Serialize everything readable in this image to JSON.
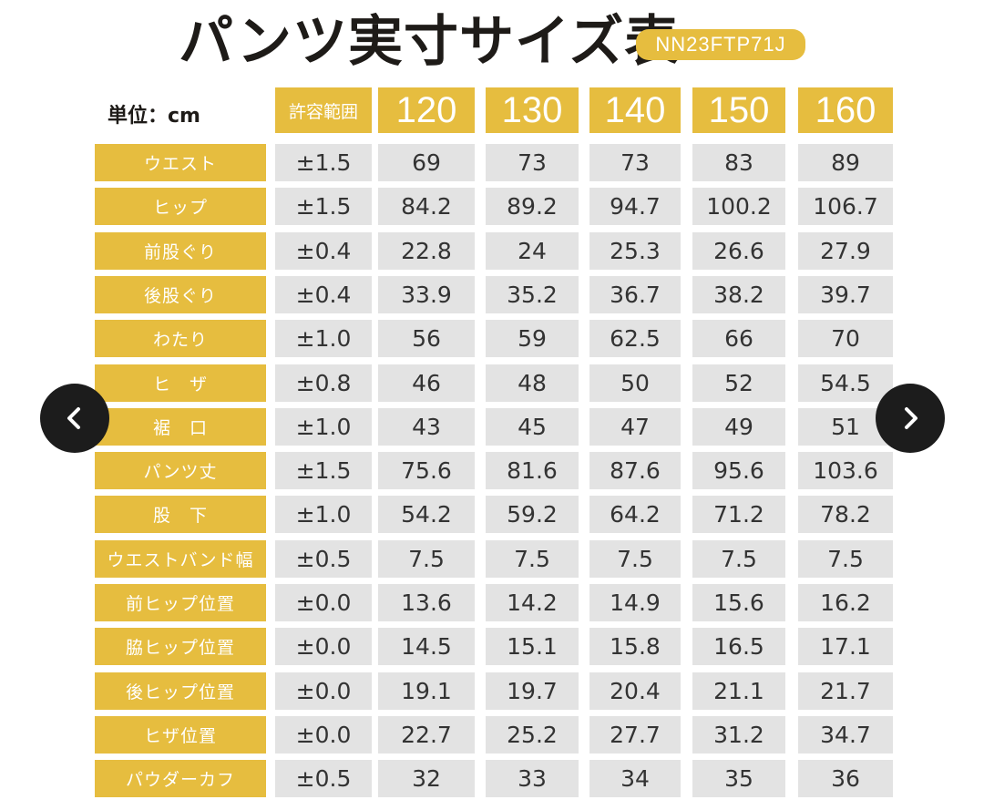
{
  "header": {
    "title": "パンツ実寸サイズ表",
    "product_code": "NN23FTP71J",
    "unit_label": "単位：cm"
  },
  "table": {
    "tolerance_header": "許容範囲",
    "sizes": [
      "120",
      "130",
      "140",
      "150",
      "160"
    ],
    "rows": [
      {
        "label": "ウエスト",
        "tolerance": "±1.5",
        "values": [
          "69",
          "73",
          "73",
          "83",
          "89"
        ]
      },
      {
        "label": "ヒップ",
        "tolerance": "±1.5",
        "values": [
          "84.2",
          "89.2",
          "94.7",
          "100.2",
          "106.7"
        ]
      },
      {
        "label": "前股ぐり",
        "tolerance": "±0.4",
        "values": [
          "22.8",
          "24",
          "25.3",
          "26.6",
          "27.9"
        ]
      },
      {
        "label": "後股ぐり",
        "tolerance": "±0.4",
        "values": [
          "33.9",
          "35.2",
          "36.7",
          "38.2",
          "39.7"
        ]
      },
      {
        "label": "わたり",
        "tolerance": "±1.0",
        "values": [
          "56",
          "59",
          "62.5",
          "66",
          "70"
        ]
      },
      {
        "label": "ヒ　ザ",
        "tolerance": "±0.8",
        "values": [
          "46",
          "48",
          "50",
          "52",
          "54.5"
        ]
      },
      {
        "label": "裾　口",
        "tolerance": "±1.0",
        "values": [
          "43",
          "45",
          "47",
          "49",
          "51"
        ]
      },
      {
        "label": "パンツ丈",
        "tolerance": "±1.5",
        "values": [
          "75.6",
          "81.6",
          "87.6",
          "95.6",
          "103.6"
        ]
      },
      {
        "label": "股　下",
        "tolerance": "±1.0",
        "values": [
          "54.2",
          "59.2",
          "64.2",
          "71.2",
          "78.2"
        ]
      },
      {
        "label": "ウエストバンド幅",
        "tolerance": "±0.5",
        "values": [
          "7.5",
          "7.5",
          "7.5",
          "7.5",
          "7.5"
        ]
      },
      {
        "label": "前ヒップ位置",
        "tolerance": "±0.0",
        "values": [
          "13.6",
          "14.2",
          "14.9",
          "15.6",
          "16.2"
        ]
      },
      {
        "label": "脇ヒップ位置",
        "tolerance": "±0.0",
        "values": [
          "14.5",
          "15.1",
          "15.8",
          "16.5",
          "17.1"
        ]
      },
      {
        "label": "後ヒップ位置",
        "tolerance": "±0.0",
        "values": [
          "19.1",
          "19.7",
          "20.4",
          "21.1",
          "21.7"
        ]
      },
      {
        "label": "ヒザ位置",
        "tolerance": "±0.0",
        "values": [
          "22.7",
          "25.2",
          "27.7",
          "31.2",
          "34.7"
        ]
      },
      {
        "label": "パウダーカフ",
        "tolerance": "±0.5",
        "values": [
          "32",
          "33",
          "34",
          "35",
          "36"
        ]
      }
    ]
  },
  "nav": {
    "prev_icon": "chevron-left-icon",
    "next_icon": "chevron-right-icon"
  },
  "colors": {
    "accent": "#e6bd3f",
    "cell_background": "#e3e3e3",
    "nav_button": "#1c1c1c"
  }
}
